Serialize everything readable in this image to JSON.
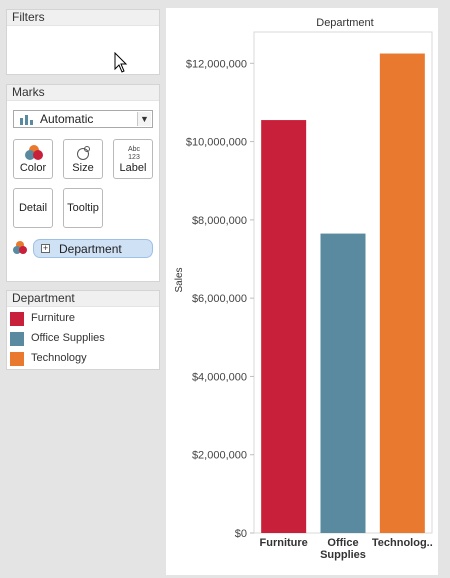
{
  "filters": {
    "title": "Filters"
  },
  "marks": {
    "title": "Marks",
    "mark_type": "Automatic",
    "buttons": {
      "color": "Color",
      "size": "Size",
      "label": "Label",
      "label_icon": "Abc\n123",
      "detail": "Detail",
      "tooltip": "Tooltip"
    },
    "color_field": "Department"
  },
  "legend": {
    "title": "Department",
    "items": [
      {
        "label": "Furniture",
        "color": "#c8203a"
      },
      {
        "label": "Office Supplies",
        "color": "#5a8aa0"
      },
      {
        "label": "Technology",
        "color": "#e8792e"
      }
    ]
  },
  "chart_data": {
    "type": "bar",
    "title": "Department",
    "categories": [
      "Furniture",
      "Office Supplies",
      "Technology"
    ],
    "category_labels": [
      [
        "Furniture"
      ],
      [
        "Office",
        "Supplies"
      ],
      [
        "Technolog.."
      ]
    ],
    "values": [
      10550000,
      7650000,
      12250000
    ],
    "colors": [
      "#c8203a",
      "#5a8aa0",
      "#e8792e"
    ],
    "ylabel": "Sales",
    "ylim": [
      0,
      12800000
    ],
    "yticks": [
      0,
      2000000,
      4000000,
      6000000,
      8000000,
      10000000,
      12000000
    ],
    "ytick_labels": [
      "$0",
      "$2,000,000",
      "$4,000,000",
      "$6,000,000",
      "$8,000,000",
      "$10,000,000",
      "$12,000,000"
    ],
    "grid": false
  }
}
